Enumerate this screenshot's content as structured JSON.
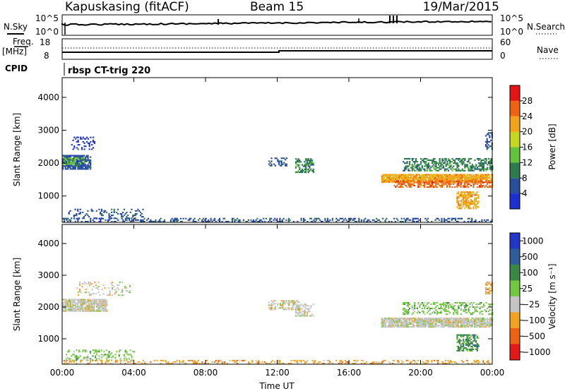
{
  "header": {
    "station": "Kapuskasing (fitACF)",
    "beam": "Beam 15",
    "date": "19/Mar/2015"
  },
  "top_panels": {
    "nsky_label": "N.Sky",
    "nsearch_label": "N.Search",
    "noise_left_ticks": [
      "10^5",
      "10^0"
    ],
    "noise_right_ticks": [
      "10^5",
      "10^0"
    ],
    "freq_label": "Freq.",
    "freq_unit": "[MHz]",
    "freq_ticks": [
      "18",
      "8"
    ],
    "nave_label": "Nave",
    "nave_ticks": [
      "60",
      "0"
    ],
    "cpid_label": "CPID",
    "cpid_value": "rbsp CT-trig 220"
  },
  "colors": {
    "power": [
      "#1d2fd0",
      "#284f99",
      "#2d7a4a",
      "#62c43c",
      "#c7d71f",
      "#f3a416",
      "#ee6210",
      "#e51515"
    ],
    "velocity": [
      "#2236c8",
      "#2f5d9b",
      "#3a8843",
      "#74c740",
      "#c4c4c4",
      "#f2a21e",
      "#ee6311",
      "#e51717"
    ],
    "ground_scatter": "#c4c4c4"
  },
  "chart_data": [
    {
      "type": "heatmap",
      "name": "power",
      "ylabel": "Slant Range [km]",
      "ylim": [
        200,
        4600
      ],
      "y_ticks": [
        "1000",
        "2000",
        "3000",
        "4000"
      ],
      "x_ticks": [
        "00:00",
        "04:00",
        "08:00",
        "12:00",
        "16:00",
        "20:00",
        "00:00"
      ],
      "xlim_hours": [
        0,
        24
      ],
      "colorbar": {
        "label": "Power [dB]",
        "ticks": [
          "4",
          "8",
          "12",
          "16",
          "20",
          "24",
          "28"
        ]
      },
      "regions": [
        {
          "t": [
            0.0,
            1.6
          ],
          "r": [
            1800,
            2250
          ],
          "level": 1,
          "density": 0.85
        },
        {
          "t": [
            0.0,
            1.2
          ],
          "r": [
            1950,
            2150
          ],
          "level": 3,
          "density": 0.5
        },
        {
          "t": [
            0.5,
            1.8
          ],
          "r": [
            2400,
            2800
          ],
          "level": 0,
          "density": 0.25
        },
        {
          "t": [
            0.2,
            4.5
          ],
          "r": [
            300,
            600
          ],
          "level": 1,
          "density": 0.25
        },
        {
          "t": [
            11.5,
            12.5
          ],
          "r": [
            1900,
            2150
          ],
          "level": 1,
          "density": 0.4
        },
        {
          "t": [
            13.0,
            14.0
          ],
          "r": [
            1700,
            2150
          ],
          "level": 2,
          "density": 0.6
        },
        {
          "t": [
            17.8,
            24.0
          ],
          "r": [
            1400,
            1650
          ],
          "level": 5,
          "density": 0.9
        },
        {
          "t": [
            18.5,
            24.0
          ],
          "r": [
            1250,
            1450
          ],
          "level": 6,
          "density": 0.6
        },
        {
          "t": [
            19.0,
            24.0
          ],
          "r": [
            1750,
            2150
          ],
          "level": 2,
          "density": 0.5
        },
        {
          "t": [
            22.0,
            23.2
          ],
          "r": [
            600,
            1100
          ],
          "level": 5,
          "density": 0.6
        },
        {
          "t": [
            23.6,
            24.0
          ],
          "r": [
            2400,
            2900
          ],
          "level": 1,
          "density": 0.5
        },
        {
          "t": [
            0.0,
            24.0
          ],
          "r": [
            200,
            320
          ],
          "level": 1,
          "density": 0.35
        }
      ]
    },
    {
      "type": "heatmap",
      "name": "velocity",
      "ylabel": "Slant Range [km]",
      "xlabel": "Time UT",
      "ylim": [
        200,
        4600
      ],
      "y_ticks": [
        "1000",
        "2000",
        "3000",
        "4000"
      ],
      "x_ticks": [
        "00:00",
        "04:00",
        "08:00",
        "12:00",
        "16:00",
        "20:00",
        "00:00"
      ],
      "xlim_hours": [
        0,
        24
      ],
      "colorbar": {
        "label": "Velocity [m s⁻¹]",
        "ticks": [
          "1000",
          "500",
          "100",
          "25",
          "−25",
          "−100",
          "−500",
          "−1000"
        ]
      },
      "regions": [
        {
          "t": [
            0.0,
            2.5
          ],
          "r": [
            1850,
            2250
          ],
          "level": 4,
          "density": 0.85
        },
        {
          "t": [
            0.8,
            3.8
          ],
          "r": [
            2350,
            2800
          ],
          "level": 4,
          "density": 0.2
        },
        {
          "t": [
            0.2,
            4.0
          ],
          "r": [
            300,
            650
          ],
          "level": 3,
          "density": 0.3
        },
        {
          "t": [
            11.5,
            13.2
          ],
          "r": [
            1900,
            2200
          ],
          "level": 4,
          "density": 0.5
        },
        {
          "t": [
            13.0,
            14.0
          ],
          "r": [
            1700,
            2100
          ],
          "level": 4,
          "density": 0.6
        },
        {
          "t": [
            17.8,
            24.0
          ],
          "r": [
            1350,
            1650
          ],
          "level": 4,
          "density": 0.9
        },
        {
          "t": [
            19.0,
            24.0
          ],
          "r": [
            1750,
            2150
          ],
          "level": 3,
          "density": 0.35
        },
        {
          "t": [
            22.0,
            23.2
          ],
          "r": [
            600,
            1100
          ],
          "level": 2,
          "density": 0.6
        },
        {
          "t": [
            23.6,
            24.0
          ],
          "r": [
            2400,
            2800
          ],
          "level": 5,
          "density": 0.5
        },
        {
          "t": [
            0.0,
            24.0
          ],
          "r": [
            200,
            320
          ],
          "level": 5,
          "density": 0.3
        }
      ]
    }
  ]
}
